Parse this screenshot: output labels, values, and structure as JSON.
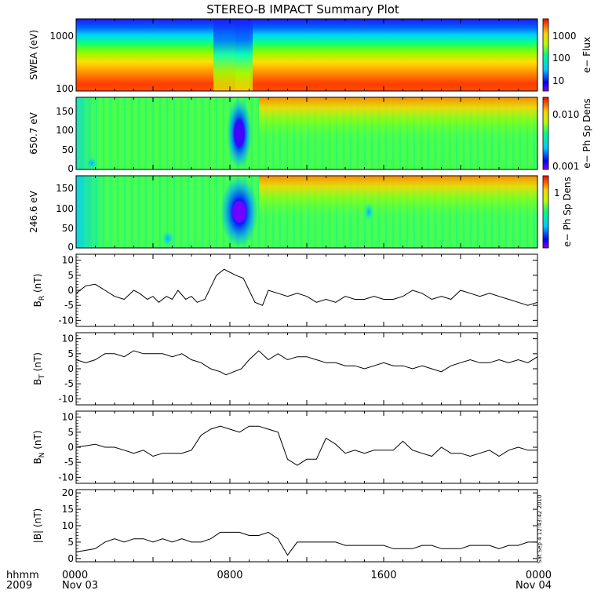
{
  "chart_data": {
    "type": "line",
    "title": "STEREO-B IMPACT Summary Plot",
    "timestamp": "Sat Sep  4 12:43:42 2010",
    "time_axis": {
      "label_row1": "hhmm",
      "label_row2": "2009",
      "range_hours": [
        0,
        24
      ],
      "ticks": [
        {
          "hour": 0,
          "label": "0000",
          "sublabel": "Nov 03"
        },
        {
          "hour": 8,
          "label": "0800",
          "sublabel": ""
        },
        {
          "hour": 16,
          "label": "1600",
          "sublabel": ""
        },
        {
          "hour": 24,
          "label": "0000",
          "sublabel": "Nov 04"
        }
      ]
    },
    "spectrograms": [
      {
        "ylabel": "SWEA (eV)",
        "yticks": [
          "1000",
          "100"
        ],
        "colorbar_label": "e−  Flux",
        "colorbar_ticks": [
          "1000",
          "100",
          "10"
        ]
      },
      {
        "ylabel": "650.7 eV",
        "yticks": [
          "150",
          "100",
          "50",
          "0"
        ],
        "colorbar_label": "e−  Ph  Sp  Dens",
        "colorbar_ticks": [
          "0.010",
          "0.001"
        ]
      },
      {
        "ylabel": "246.6 eV",
        "yticks": [
          "150",
          "100",
          "50",
          "0"
        ],
        "colorbar_label": "e−  Ph  Sp  Dens",
        "colorbar_ticks": [
          "1"
        ]
      }
    ],
    "series": [
      {
        "name": "BR",
        "ylabel_main": "B",
        "ylabel_sub": "R",
        "ylabel_unit": " (nT)",
        "ylim": [
          -12,
          12
        ],
        "yticks": [
          "10",
          "5",
          "0",
          "-5",
          "-10"
        ],
        "x": [
          0,
          0.5,
          1,
          1.5,
          2,
          2.5,
          3,
          3.3,
          3.7,
          4,
          4.3,
          4.7,
          5,
          5.3,
          5.7,
          6,
          6.3,
          6.7,
          7,
          7.3,
          7.7,
          8,
          8.3,
          8.7,
          9,
          9.3,
          9.7,
          10,
          10.5,
          11,
          11.5,
          12,
          12.5,
          13,
          13.5,
          14,
          14.5,
          15,
          15.5,
          16,
          16.5,
          17,
          17.5,
          18,
          18.5,
          19,
          19.5,
          20,
          20.5,
          21,
          21.5,
          22,
          22.5,
          23,
          23.5,
          24
        ],
        "y": [
          -1,
          1.5,
          2,
          0,
          -2,
          -3,
          0,
          -1,
          -3,
          -2,
          -4,
          -2,
          -3,
          0,
          -3,
          -2,
          -4,
          -3,
          1,
          5,
          7,
          6,
          5,
          4,
          0,
          -4,
          -5,
          0,
          -1,
          -2,
          -1,
          -2,
          -4,
          -3,
          -4,
          -2,
          -3,
          -3,
          -2,
          -3,
          -3,
          -2,
          0,
          -1,
          -3,
          -2,
          -3,
          0,
          -1,
          -2,
          -1,
          -2,
          -3,
          -4,
          -5,
          -4
        ]
      },
      {
        "name": "BT",
        "ylabel_main": "B",
        "ylabel_sub": "T",
        "ylabel_unit": " (nT)",
        "ylim": [
          -12,
          12
        ],
        "yticks": [
          "10",
          "5",
          "0",
          "-5",
          "-10"
        ],
        "x": [
          0,
          0.5,
          1,
          1.5,
          2,
          2.5,
          3,
          3.5,
          4,
          4.5,
          5,
          5.5,
          6,
          6.5,
          7,
          7.5,
          7.8,
          8.2,
          8.6,
          9,
          9.5,
          10,
          10.5,
          11,
          11.5,
          12,
          12.5,
          13,
          13.5,
          14,
          14.5,
          15,
          15.5,
          16,
          16.5,
          17,
          17.5,
          18,
          18.5,
          19,
          19.5,
          20,
          20.5,
          21,
          21.5,
          22,
          22.5,
          23,
          23.5,
          24
        ],
        "y": [
          3,
          2,
          3,
          5,
          5,
          4,
          6,
          5,
          5,
          5,
          4,
          5,
          3,
          2,
          0,
          -1,
          -2,
          -1,
          0,
          3,
          6,
          3,
          5,
          3,
          4,
          4,
          3,
          2,
          2,
          1,
          1,
          0,
          1,
          2,
          1,
          1,
          0,
          1,
          0,
          -1,
          1,
          2,
          3,
          2,
          2,
          3,
          2,
          3,
          2,
          4
        ]
      },
      {
        "name": "BN",
        "ylabel_main": "B",
        "ylabel_sub": "N",
        "ylabel_unit": " (nT)",
        "ylim": [
          -12,
          12
        ],
        "yticks": [
          "10",
          "5",
          "0",
          "-5",
          "-10"
        ],
        "x": [
          0,
          0.5,
          1,
          1.5,
          2,
          2.5,
          3,
          3.5,
          4,
          4.5,
          5,
          5.5,
          6,
          6.5,
          7,
          7.5,
          8,
          8.5,
          9,
          9.5,
          10,
          10.5,
          11,
          11.5,
          12,
          12.5,
          13,
          13.5,
          14,
          14.5,
          15,
          15.5,
          16,
          16.5,
          17,
          17.5,
          18,
          18.5,
          19,
          19.5,
          20,
          20.5,
          21,
          21.5,
          22,
          22.5,
          23,
          23.5,
          24
        ],
        "y": [
          0,
          0.5,
          1,
          0,
          0,
          -1,
          -2,
          -1,
          -3,
          -2,
          -2,
          -2,
          -1,
          4,
          6,
          7,
          6,
          5,
          7,
          7,
          6,
          5,
          -4,
          -6,
          -4,
          -4,
          3,
          1,
          -2,
          -1,
          -2,
          -1,
          -1,
          -1,
          2,
          -1,
          -2,
          -3,
          0,
          -2,
          -2,
          -3,
          -2,
          -1,
          -3,
          -1,
          0,
          -1,
          -1
        ]
      },
      {
        "name": "|B|",
        "ylabel_main": "|B|",
        "ylabel_sub": "",
        "ylabel_unit": " (nT)",
        "ylim": [
          -1,
          21
        ],
        "yticks": [
          "20",
          "15",
          "10",
          "5",
          "0"
        ],
        "x": [
          0,
          0.5,
          1,
          1.5,
          2,
          2.5,
          3,
          3.5,
          4,
          4.5,
          5,
          5.5,
          6,
          6.5,
          7,
          7.5,
          8,
          8.5,
          9,
          9.5,
          10,
          10.5,
          11,
          11.5,
          12,
          12.5,
          13,
          13.5,
          14,
          14.5,
          15,
          15.5,
          16,
          16.5,
          17,
          17.5,
          18,
          18.5,
          19,
          19.5,
          20,
          20.5,
          21,
          21.5,
          22,
          22.5,
          23,
          23.5,
          24
        ],
        "y": [
          2,
          2.5,
          3,
          5,
          6,
          5,
          6,
          6,
          5,
          6,
          5,
          6,
          5,
          5,
          6,
          8,
          8,
          8,
          7,
          7,
          8,
          6,
          1,
          5,
          5,
          5,
          5,
          5,
          4,
          4,
          4,
          4,
          4,
          3,
          3,
          3,
          4,
          4,
          3,
          3,
          3,
          4,
          4,
          4,
          3,
          4,
          4,
          5,
          5
        ]
      }
    ]
  }
}
